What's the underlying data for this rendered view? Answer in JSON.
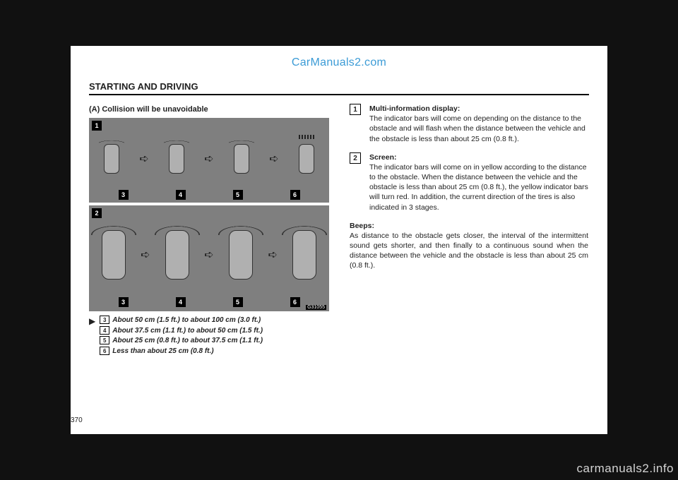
{
  "branding": {
    "top_watermark": "CarManuals2.com",
    "bottom_watermark": "carmanuals2.info"
  },
  "header": {
    "section": "STARTING AND DRIVING"
  },
  "left": {
    "subheading": "(A) Collision will be unavoidable",
    "panel_code": "G31055",
    "corner1": "1",
    "corner2": "2",
    "row_labels": [
      "3",
      "4",
      "5",
      "6"
    ],
    "legend": {
      "marker": "▶",
      "items": [
        {
          "num": "3",
          "text": "About 50 cm (1.5 ft.) to about 100 cm (3.0 ft.)"
        },
        {
          "num": "4",
          "text": "About 37.5 cm (1.1 ft.) to about 50 cm (1.5 ft.)"
        },
        {
          "num": "5",
          "text": "About 25 cm (0.8 ft.) to about 37.5 cm (1.1 ft.)"
        },
        {
          "num": "6",
          "text": "Less than about 25 cm (0.8 ft.)"
        }
      ]
    }
  },
  "right": {
    "item1": {
      "num": "1",
      "title": "Multi‑information display:",
      "body": "The indicator bars will come on depending on the distance to the obstacle and will flash when the distance between the vehicle and the obstacle is less than about 25 cm (0.8 ft.)."
    },
    "item2": {
      "num": "2",
      "title": "Screen:",
      "body": "The indicator bars will come on in yellow according to the distance to the obstacle. When the distance between the vehicle and the obstacle is less than about 25 cm (0.8 ft.), the yellow indicator bars will turn red.  In addition, the current direction of the tires is also indicated in 3 stages."
    },
    "beeps": {
      "title": "Beeps:",
      "body": "As distance to the obstacle gets closer, the interval of the intermittent sound gets shorter, and then finally to a continuous sound when the distance between the vehicle and the obstacle is less than about 25 cm (0.8 ft.)."
    }
  },
  "page_number": "370"
}
